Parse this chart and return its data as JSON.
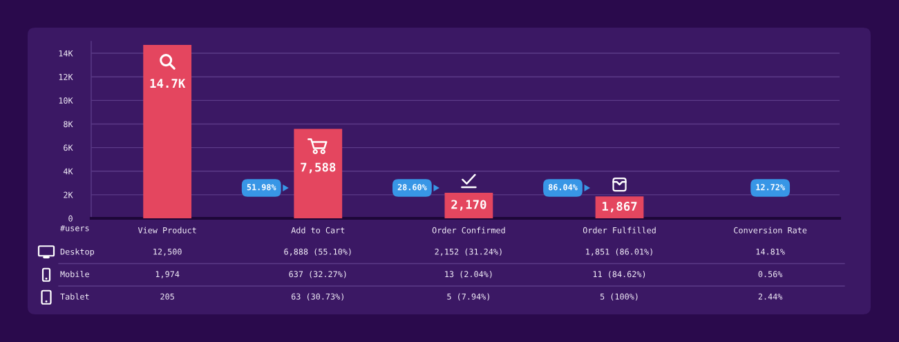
{
  "chart_data": [
    {
      "type": "bar",
      "categories": [
        "View Product",
        "Add to Cart",
        "Order Confirmed",
        "Order Fulfilled",
        "Conversion Rate"
      ],
      "values": [
        14700,
        7588,
        2170,
        1867,
        null
      ],
      "color": "#e4465f",
      "value_labels": [
        "14.7K",
        "7,588",
        "2,170",
        "1,867",
        null
      ],
      "ylim": [
        0,
        15000
      ],
      "yticks": [
        0,
        {
          "value": 2000,
          "label": "2K"
        },
        {
          "value": 4000,
          "label": "4K"
        },
        {
          "value": 6000,
          "label": "6K"
        },
        {
          "value": 8000,
          "label": "8K"
        },
        {
          "value": 10000,
          "label": "10K"
        },
        {
          "value": 12000,
          "label": "12K"
        },
        {
          "value": 14000,
          "label": "14K"
        }
      ],
      "grid": "y",
      "annotations": [
        "51.98%",
        "28.60%",
        "86.04%",
        "12.72%"
      ]
    },
    {
      "type": "other",
      "y_categories": [
        "Desktop",
        "Mobile",
        "Tablet"
      ],
      "cell_labels": [
        [
          "12,500",
          "6,888 (55.10%)",
          "2,152 (31.24%)",
          "1,851 (86.01%)",
          "14.81%"
        ],
        [
          "1,974",
          "637 (32.27%)",
          "13 (2.04%)",
          "11 (84.62%)",
          "0.56%"
        ],
        [
          "205",
          "63 (30.73%)",
          "5 (7.94%)",
          "5 (100%)",
          "2.44%"
        ]
      ],
      "annotations": [
        "#users"
      ]
    }
  ]
}
